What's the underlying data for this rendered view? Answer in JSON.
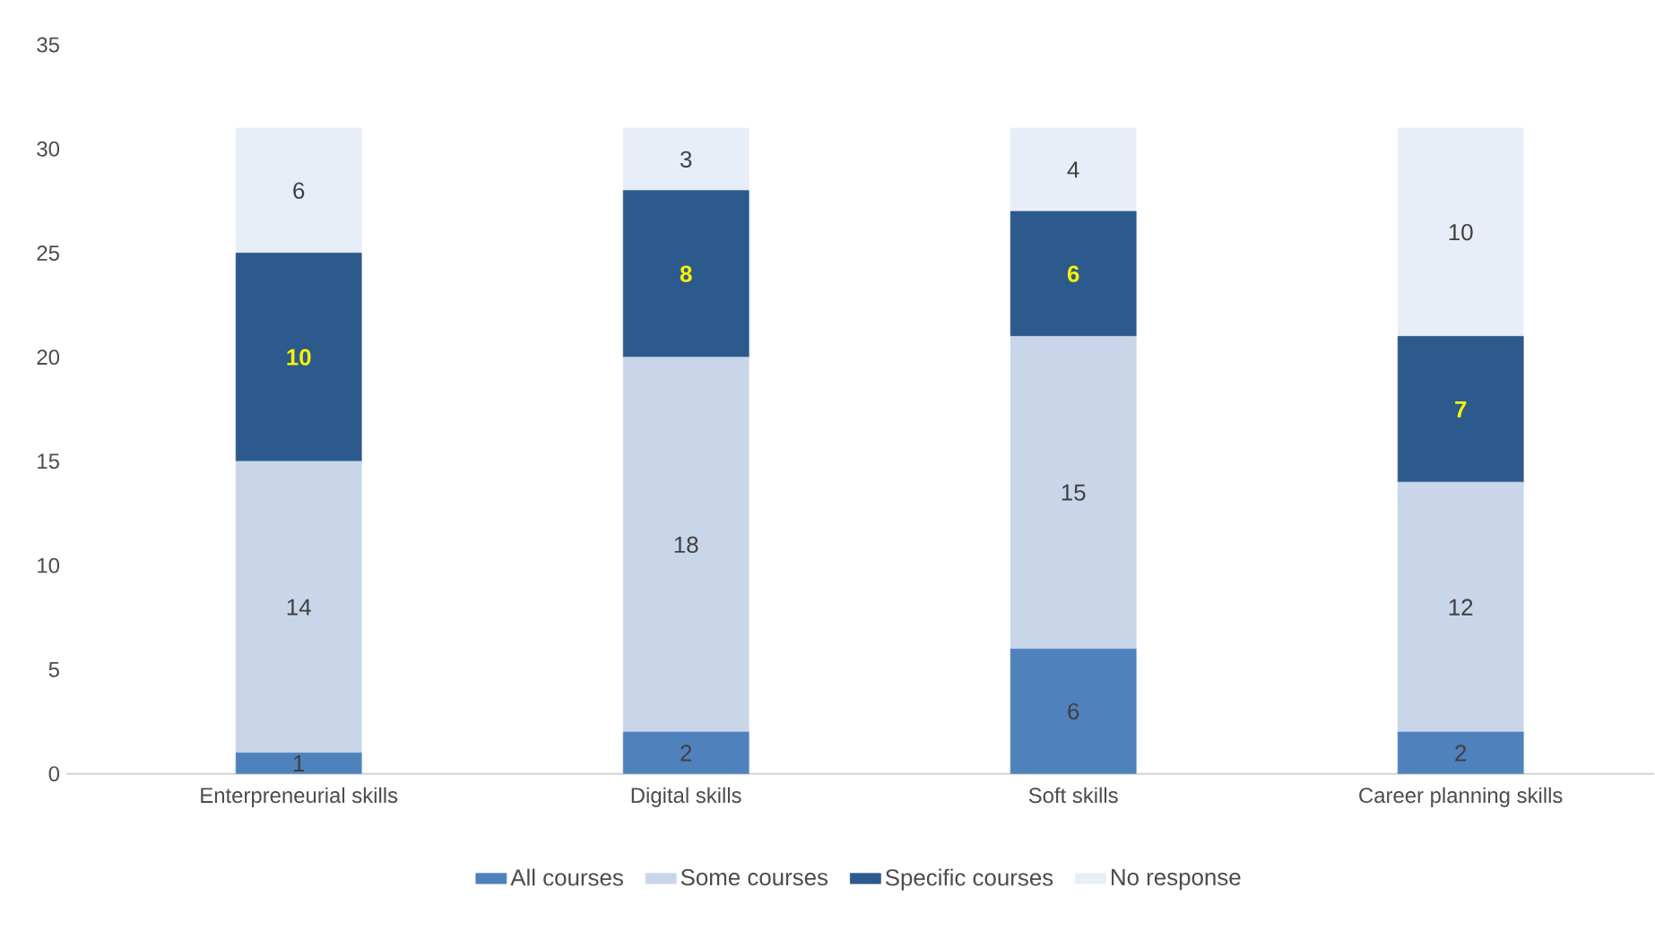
{
  "chart_data": {
    "type": "bar",
    "stacked": true,
    "categories": [
      "Enterpreneurial skills",
      "Digital skills",
      "Soft skills",
      "Career planning skills"
    ],
    "series": [
      {
        "name": "All courses",
        "color": "#4f81bd",
        "values": [
          1,
          2,
          6,
          2
        ]
      },
      {
        "name": "Some courses",
        "color": "#c9d6ea",
        "values": [
          14,
          18,
          15,
          12
        ]
      },
      {
        "name": "Specific courses",
        "color": "#2c5a8c",
        "values": [
          10,
          8,
          6,
          7
        ]
      },
      {
        "name": "No response",
        "color": "#e8eef7",
        "values": [
          6,
          3,
          4,
          10
        ]
      }
    ],
    "ylim": [
      0,
      35
    ],
    "yticks": [
      0,
      5,
      10,
      15,
      20,
      25,
      30,
      35
    ],
    "grid": false,
    "legend": "bottom",
    "data_labels": true
  }
}
